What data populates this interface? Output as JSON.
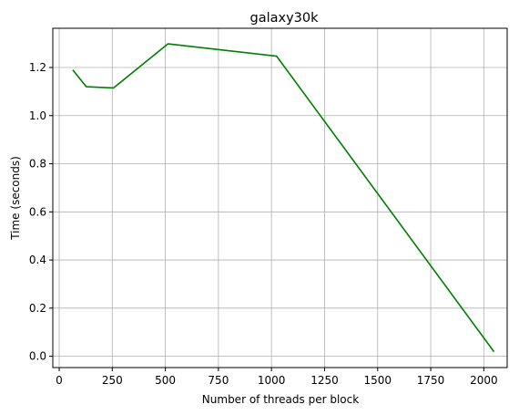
{
  "chart_data": {
    "type": "line",
    "title": "galaxy30k",
    "xlabel": "Number of threads per block",
    "ylabel": "Time (seconds)",
    "grid": true,
    "xlim": [
      -30,
      2110
    ],
    "ylim": [
      -0.047,
      1.363
    ],
    "x_ticks": [
      0,
      250,
      500,
      750,
      1000,
      1250,
      1500,
      1750,
      2000
    ],
    "y_ticks": [
      0.0,
      0.2,
      0.4,
      0.6,
      0.8,
      1.0,
      1.2
    ],
    "series": [
      {
        "color": "#008000",
        "x": [
          64,
          128,
          256,
          512,
          1024,
          2048
        ],
        "y": [
          1.19,
          1.12,
          1.115,
          1.298,
          1.247,
          0.019
        ]
      }
    ]
  }
}
